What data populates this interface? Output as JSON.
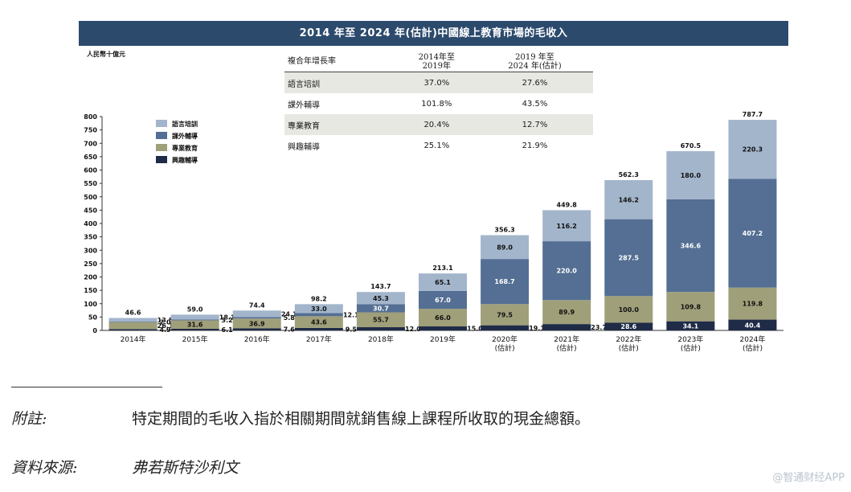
{
  "chart_data": {
    "type": "bar",
    "stacked": true,
    "title": "2014 年至 2024 年(估計)中國線上教育市場的毛收入",
    "ylabel": "人民幣十億元",
    "ylim": [
      0,
      800
    ],
    "yticks": [
      0,
      50,
      100,
      150,
      200,
      250,
      300,
      350,
      400,
      450,
      500,
      550,
      600,
      650,
      700,
      750,
      800
    ],
    "categories": [
      [
        "2014年"
      ],
      [
        "2015年"
      ],
      [
        "2016年"
      ],
      [
        "2017年"
      ],
      [
        "2018年"
      ],
      [
        "2019年"
      ],
      [
        "2020年",
        "(估計)"
      ],
      [
        "2021年",
        "(估計)"
      ],
      [
        "2022年",
        "(估計)"
      ],
      [
        "2023年",
        "(估計)"
      ],
      [
        "2024年",
        "(估計)"
      ]
    ],
    "series": [
      {
        "name": "興趣輔導",
        "color": "#1f2b47",
        "values": [
          4.9,
          6.1,
          7.6,
          9.5,
          12.0,
          15.0,
          19.1,
          23.7,
          28.6,
          34.1,
          40.4
        ],
        "labels": [
          "4.9",
          "6.1",
          "7.6",
          "9.5",
          "12.0",
          "15.0",
          "19.1",
          "23.7",
          "28.6",
          "34.1",
          "40.4"
        ]
      },
      {
        "name": "專業教育",
        "color": "#9f9f7a",
        "values": [
          26.1,
          31.6,
          36.9,
          43.6,
          55.7,
          66.0,
          79.5,
          89.9,
          100.0,
          109.8,
          119.8
        ],
        "labels": [
          "26.1",
          "31.6",
          "36.9",
          "43.6",
          "55.7",
          "66.0",
          "79.5",
          "89.9",
          "100.0",
          "109.8",
          "119.8"
        ]
      },
      {
        "name": "課外輔導",
        "color": "#546f93",
        "values": [
          2.0,
          3.2,
          5.8,
          12.1,
          30.7,
          67.0,
          168.7,
          220.0,
          287.5,
          346.6,
          407.2
        ],
        "labels": [
          "2.0",
          "3.2",
          "5.8",
          "12.1",
          "30.7",
          "67.0",
          "168.7",
          "220.0",
          "287.5",
          "346.6",
          "407.2"
        ]
      },
      {
        "name": "語言培訓",
        "color": "#a3b5cb",
        "values": [
          13.5,
          18.1,
          24.1,
          33.0,
          45.3,
          65.1,
          89.0,
          116.2,
          146.2,
          180.0,
          220.3
        ],
        "labels": [
          "13.5",
          "18.1",
          "24.1",
          "33.0",
          "45.3",
          "65.1",
          "89.0",
          "116.2",
          "146.2",
          "180.0",
          "220.3"
        ]
      }
    ],
    "totals": [
      "46.6",
      "59.0",
      "74.4",
      "98.2",
      "143.7",
      "213.1",
      "356.3",
      "449.8",
      "562.3",
      "670.5",
      "787.7"
    ],
    "legend": [
      "語言培訓",
      "課外輔導",
      "專業教育",
      "興趣輔導"
    ],
    "legend_position": "top-left"
  },
  "cagr_table": {
    "headers": {
      "segment": "複合年增長率",
      "period1_line1": "2014年至",
      "period1_line2": "2019年",
      "period2_line1": "2019 年至",
      "period2_line2": "2024 年(估計)"
    },
    "rows": [
      {
        "segment": "語言培訓",
        "cagr1": "37.0%",
        "cagr2": "27.6%"
      },
      {
        "segment": "課外輔導",
        "cagr1": "101.8%",
        "cagr2": "43.5%"
      },
      {
        "segment": "專業教育",
        "cagr1": "20.4%",
        "cagr2": "12.7%"
      },
      {
        "segment": "興趣輔導",
        "cagr1": "25.1%",
        "cagr2": "21.9%"
      }
    ]
  },
  "notes": {
    "note_label": "附註:",
    "note_text": "特定期間的毛收入指於相關期間就銷售線上課程所收取的現金總額。",
    "source_label": "資料來源:",
    "source_text": "弗若斯特沙利文"
  },
  "watermark": "@智通财经APP"
}
